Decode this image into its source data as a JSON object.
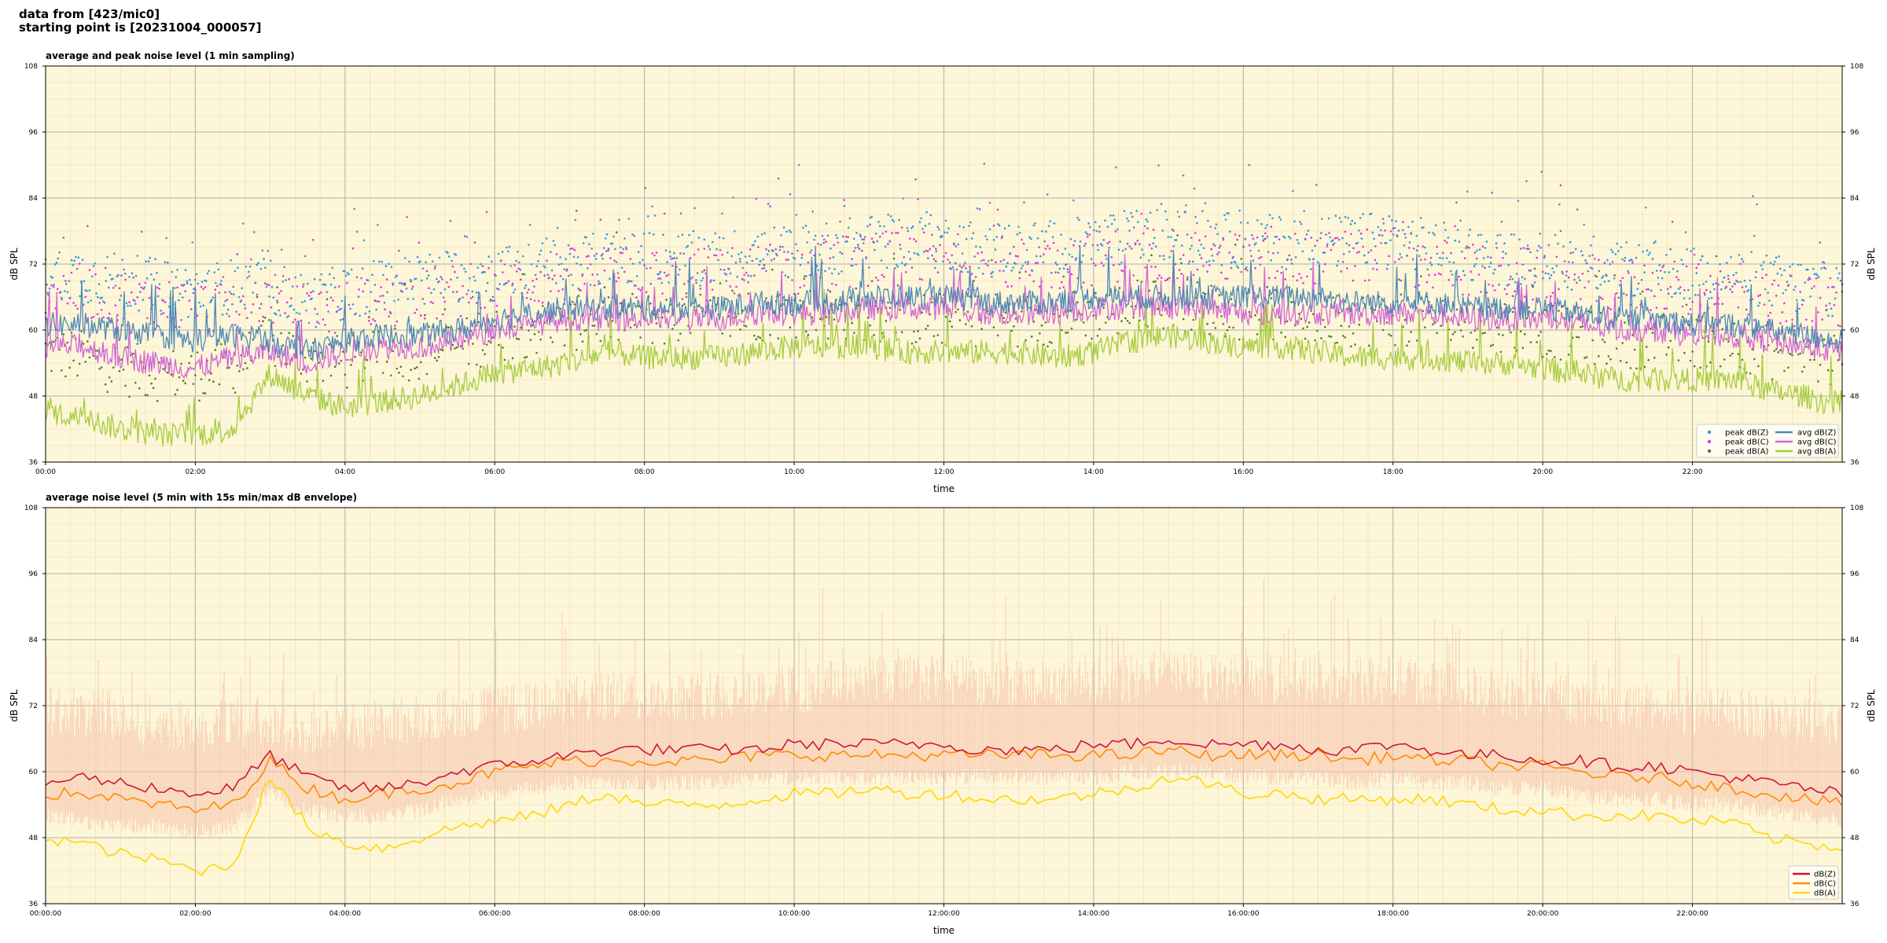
{
  "header": {
    "line1": "data from [423/mic0]",
    "line2": "starting point is [20231004_000057]"
  },
  "colors": {
    "background": "#fdf6d8",
    "avg_z": "#4f88b5",
    "avg_c": "#d266d6",
    "avg_a": "#a6cc3d",
    "peak_z": "#3399dd",
    "peak_c": "#e033e0",
    "peak_a": "#4c7a2c",
    "dbz": "#d0143c",
    "dbc": "#ff8c00",
    "dba": "#ffd700",
    "envelope": "#f7c8b0"
  },
  "chart_data": [
    {
      "type": "line",
      "title": "average and peak noise level (1 min sampling)",
      "xlabel": "time",
      "ylabel": "dB SPL",
      "ylim": [
        36,
        108
      ],
      "xlim_hours": [
        0,
        24
      ],
      "yticks": [
        36,
        48,
        60,
        72,
        84,
        96,
        108
      ],
      "xticks": [
        "00:00",
        "02:00",
        "04:00",
        "06:00",
        "08:00",
        "10:00",
        "12:00",
        "14:00",
        "16:00",
        "18:00",
        "20:00",
        "22:00"
      ],
      "grid": true,
      "legend_position": "bottom-right",
      "legend": [
        "peak dB(Z)",
        "peak dB(C)",
        "peak dB(A)",
        "avg dB(Z)",
        "avg dB(C)",
        "avg dB(A)"
      ],
      "x_hours": [
        0,
        0.5,
        1,
        1.5,
        2,
        2.5,
        3,
        3.5,
        4,
        4.5,
        5,
        5.5,
        6,
        6.5,
        7,
        7.5,
        8,
        8.5,
        9,
        9.5,
        10,
        10.5,
        11,
        11.5,
        12,
        12.5,
        13,
        13.5,
        14,
        14.5,
        15,
        15.5,
        16,
        16.5,
        17,
        17.5,
        18,
        18.5,
        19,
        19.5,
        20,
        20.5,
        21,
        21.5,
        22,
        22.5,
        23,
        23.5,
        24
      ],
      "series": [
        {
          "name": "avg dB(Z)",
          "style": "line",
          "values": [
            61,
            61,
            60,
            59,
            58,
            59,
            58,
            56,
            58,
            59,
            59,
            60,
            62,
            63,
            64,
            64,
            64,
            64,
            64,
            65,
            65,
            65,
            66,
            66,
            66,
            65,
            65,
            65,
            66,
            66,
            66,
            66,
            66,
            66,
            66,
            65,
            65,
            65,
            64,
            64,
            64,
            63,
            62,
            62,
            61,
            61,
            60,
            59,
            58
          ]
        },
        {
          "name": "avg dB(C)",
          "style": "line",
          "values": [
            57,
            57,
            55,
            54,
            53,
            55,
            56,
            54,
            56,
            57,
            57,
            58,
            60,
            61,
            62,
            62,
            62,
            62,
            62,
            63,
            63,
            63,
            64,
            64,
            64,
            63,
            63,
            63,
            64,
            64,
            64,
            64,
            63,
            63,
            63,
            63,
            63,
            63,
            62,
            62,
            62,
            61,
            60,
            60,
            59,
            59,
            58,
            57,
            56
          ]
        },
        {
          "name": "avg dB(A)",
          "style": "line",
          "values": [
            45,
            44,
            42,
            41,
            41,
            42,
            52,
            48,
            46,
            47,
            48,
            50,
            52,
            53,
            54,
            56,
            55,
            55,
            55,
            56,
            57,
            57,
            57,
            56,
            56,
            56,
            56,
            55,
            56,
            58,
            59,
            58,
            57,
            57,
            56,
            55,
            55,
            55,
            54,
            54,
            53,
            52,
            51,
            51,
            51,
            51,
            49,
            48,
            46
          ]
        },
        {
          "name": "peak dB(Z)",
          "style": "scatter",
          "values": [
            71,
            70,
            69,
            68,
            67,
            68,
            68,
            65,
            67,
            68,
            69,
            70,
            70,
            71,
            72,
            73,
            73,
            73,
            73,
            74,
            74,
            75,
            76,
            76,
            76,
            75,
            75,
            75,
            76,
            77,
            77,
            77,
            76,
            76,
            76,
            76,
            77,
            75,
            74,
            73,
            73,
            72,
            71,
            71,
            70,
            70,
            69,
            68,
            67
          ]
        },
        {
          "name": "peak dB(C)",
          "style": "scatter",
          "values": [
            68,
            67,
            66,
            65,
            64,
            65,
            66,
            63,
            64,
            65,
            66,
            67,
            68,
            69,
            70,
            70,
            70,
            70,
            70,
            71,
            71,
            72,
            73,
            73,
            73,
            72,
            72,
            72,
            73,
            74,
            74,
            74,
            73,
            73,
            73,
            73,
            74,
            72,
            71,
            70,
            70,
            69,
            68,
            68,
            67,
            67,
            66,
            65,
            64
          ]
        },
        {
          "name": "peak dB(A)",
          "style": "scatter",
          "values": [
            56,
            55,
            53,
            52,
            52,
            53,
            58,
            55,
            54,
            55,
            56,
            57,
            59,
            60,
            61,
            62,
            62,
            62,
            62,
            63,
            63,
            63,
            63,
            62,
            62,
            62,
            62,
            62,
            63,
            64,
            65,
            64,
            63,
            63,
            62,
            62,
            62,
            62,
            61,
            61,
            60,
            59,
            58,
            58,
            58,
            58,
            56,
            55,
            54
          ]
        }
      ]
    },
    {
      "type": "line",
      "title": "average noise level (5 min with 15s min/max dB envelope)",
      "xlabel": "time",
      "ylabel": "dB SPL",
      "ylim": [
        36,
        108
      ],
      "xlim_hours": [
        0,
        24
      ],
      "yticks": [
        36,
        48,
        60,
        72,
        84,
        96,
        108
      ],
      "xticks": [
        "00:00:00",
        "02:00:00",
        "04:00:00",
        "06:00:00",
        "08:00:00",
        "10:00:00",
        "12:00:00",
        "14:00:00",
        "16:00:00",
        "18:00:00",
        "20:00:00",
        "22:00:00"
      ],
      "grid": true,
      "legend_position": "bottom-right",
      "legend": [
        "dB(Z)",
        "dB(C)",
        "dB(A)"
      ],
      "x_hours": [
        0,
        0.5,
        1,
        1.5,
        2,
        2.5,
        3,
        3.5,
        4,
        4.5,
        5,
        5.5,
        6,
        6.5,
        7,
        7.5,
        8,
        8.5,
        9,
        9.5,
        10,
        10.5,
        11,
        11.5,
        12,
        12.5,
        13,
        13.5,
        14,
        14.5,
        15,
        15.5,
        16,
        16.5,
        17,
        17.5,
        18,
        18.5,
        19,
        19.5,
        20,
        20.5,
        21,
        21.5,
        22,
        22.5,
        23,
        23.5,
        24
      ],
      "series": [
        {
          "name": "dB(Z)",
          "style": "line",
          "values": [
            58,
            59,
            58,
            57,
            56,
            57,
            63,
            59,
            57,
            57,
            58,
            60,
            61,
            62,
            63,
            64,
            64,
            64,
            64,
            64,
            65,
            65,
            65,
            65,
            65,
            64,
            64,
            64,
            65,
            65,
            66,
            65,
            65,
            65,
            64,
            64,
            65,
            64,
            63,
            63,
            62,
            62,
            61,
            61,
            60,
            59,
            58,
            57,
            56
          ]
        },
        {
          "name": "dB(C)",
          "style": "line",
          "values": [
            56,
            56,
            55,
            54,
            53,
            54,
            62,
            57,
            55,
            56,
            57,
            58,
            60,
            61,
            62,
            62,
            62,
            62,
            62,
            63,
            63,
            63,
            63,
            63,
            63,
            63,
            63,
            63,
            63,
            63,
            64,
            63,
            63,
            63,
            63,
            62,
            63,
            62,
            62,
            61,
            61,
            60,
            59,
            59,
            58,
            57,
            56,
            55,
            54
          ]
        },
        {
          "name": "dB(A)",
          "style": "line",
          "values": [
            48,
            47,
            45,
            44,
            42,
            43,
            59,
            50,
            47,
            46,
            48,
            50,
            51,
            52,
            54,
            56,
            54,
            54,
            54,
            55,
            56,
            56,
            57,
            56,
            56,
            55,
            55,
            55,
            56,
            57,
            59,
            58,
            56,
            56,
            55,
            55,
            55,
            55,
            54,
            53,
            53,
            52,
            52,
            52,
            51,
            51,
            48,
            47,
            46
          ]
        },
        {
          "name": "envelope max",
          "style": "band-upper",
          "values": [
            70,
            70,
            69,
            68,
            67,
            68,
            68,
            66,
            67,
            68,
            69,
            70,
            70,
            71,
            72,
            73,
            73,
            73,
            73,
            74,
            74,
            75,
            76,
            76,
            76,
            75,
            75,
            75,
            76,
            76,
            77,
            76,
            76,
            76,
            76,
            75,
            76,
            75,
            74,
            73,
            73,
            72,
            71,
            71,
            70,
            70,
            69,
            68,
            67
          ]
        },
        {
          "name": "envelope min",
          "style": "band-lower",
          "values": [
            52,
            51,
            50,
            50,
            49,
            50,
            56,
            53,
            52,
            52,
            53,
            55,
            56,
            57,
            58,
            58,
            58,
            58,
            58,
            59,
            59,
            59,
            59,
            59,
            59,
            59,
            59,
            59,
            59,
            60,
            60,
            60,
            59,
            59,
            59,
            58,
            59,
            58,
            58,
            57,
            57,
            56,
            55,
            55,
            54,
            54,
            53,
            52,
            51
          ]
        }
      ]
    }
  ]
}
